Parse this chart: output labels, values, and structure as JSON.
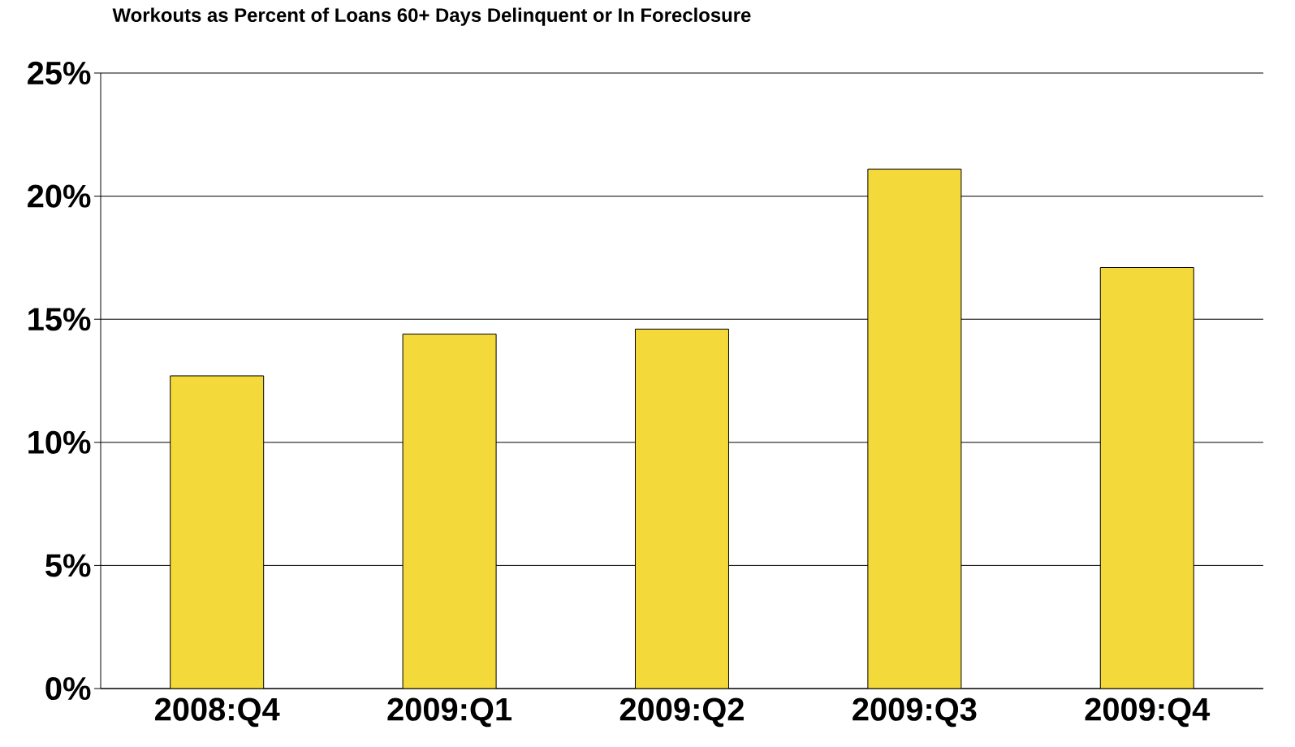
{
  "chart_data": {
    "type": "bar",
    "title": "Workouts as Percent of Loans 60+ Days Delinquent or In Foreclosure",
    "categories": [
      "2008:Q4",
      "2009:Q1",
      "2009:Q2",
      "2009:Q3",
      "2009:Q4"
    ],
    "values": [
      12.7,
      14.4,
      14.6,
      21.1,
      17.1
    ],
    "color": "#f3d93a",
    "ylim": [
      0,
      25
    ],
    "yticks": [
      {
        "value": 0,
        "label": "0%"
      },
      {
        "value": 5,
        "label": "5%"
      },
      {
        "value": 10,
        "label": "10%"
      },
      {
        "value": 15,
        "label": "15%"
      },
      {
        "value": 20,
        "label": "20%"
      },
      {
        "value": 25,
        "label": "25%"
      }
    ],
    "grid": "y"
  }
}
